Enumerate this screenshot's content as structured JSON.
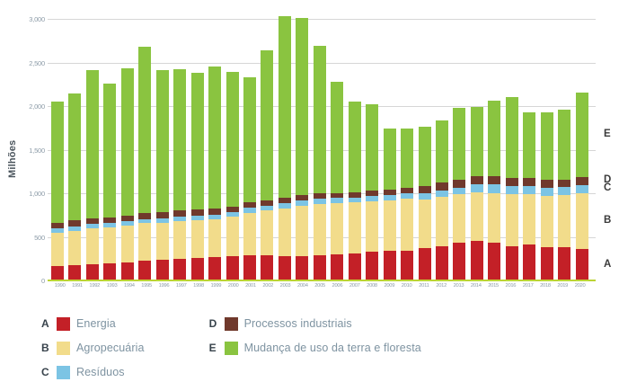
{
  "chart_data": {
    "type": "bar",
    "stacked": true,
    "title": "",
    "ylabel": "Milhões",
    "xlabel": "",
    "ylim": [
      0,
      3000
    ],
    "grid": true,
    "legend_position": "bottom-left",
    "yticks": [
      {
        "label": "3,000",
        "value": 3000
      },
      {
        "label": "2,500",
        "value": 2500
      },
      {
        "label": "2,000",
        "value": 2000
      },
      {
        "label": "1,500",
        "value": 1500
      },
      {
        "label": "1,000",
        "value": 1000
      },
      {
        "label": "500",
        "value": 500
      },
      {
        "label": "0",
        "value": 0
      }
    ],
    "categories": [
      "1990",
      "1991",
      "1992",
      "1993",
      "1994",
      "1995",
      "1996",
      "1997",
      "1998",
      "1999",
      "2000",
      "2001",
      "2002",
      "2003",
      "2004",
      "2005",
      "2006",
      "2007",
      "2008",
      "2009",
      "2010",
      "2011",
      "2012",
      "2013",
      "2014",
      "2015",
      "2016",
      "2017",
      "2018",
      "2019",
      "2020"
    ],
    "series": [
      {
        "key": "A",
        "name": "Energia",
        "color": "#c32027",
        "values": [
          170,
          180,
          190,
          195,
          205,
          225,
          235,
          250,
          260,
          265,
          280,
          285,
          285,
          280,
          280,
          285,
          300,
          310,
          325,
          340,
          340,
          370,
          395,
          430,
          455,
          430,
          395,
          415,
          385,
          385,
          360
        ]
      },
      {
        "key": "B",
        "name": "Agropecuária",
        "color": "#f2dc8b",
        "values": [
          380,
          390,
          405,
          415,
          425,
          430,
          430,
          430,
          430,
          440,
          450,
          490,
          515,
          550,
          580,
          590,
          590,
          585,
          580,
          575,
          595,
          560,
          565,
          560,
          560,
          575,
          595,
          575,
          585,
          595,
          640
        ]
      },
      {
        "key": "C",
        "name": "Resíduos",
        "color": "#7cc4e4",
        "values": [
          45,
          50,
          50,
          48,
          50,
          45,
          48,
          50,
          50,
          50,
          55,
          58,
          55,
          55,
          58,
          60,
          58,
          58,
          62,
          62,
          62,
          70,
          75,
          75,
          90,
          95,
          90,
          90,
          95,
          90,
          95
        ]
      },
      {
        "key": "D",
        "name": "Processos industriais",
        "color": "#70392c",
        "values": [
          70,
          70,
          65,
          62,
          60,
          70,
          70,
          72,
          75,
          72,
          62,
          62,
          65,
          65,
          62,
          62,
          57,
          62,
          62,
          60,
          63,
          80,
          85,
          85,
          90,
          95,
          95,
          95,
          90,
          90,
          90
        ]
      },
      {
        "key": "E",
        "name": "Mudança de uso da terra e floresta",
        "color": "#8ac440",
        "values": [
          1385,
          1450,
          1700,
          1535,
          1695,
          1915,
          1627,
          1618,
          1565,
          1628,
          1543,
          1435,
          1715,
          2085,
          2030,
          1693,
          1275,
          1035,
          991,
          703,
          685,
          685,
          715,
          830,
          800,
          870,
          925,
          750,
          770,
          800,
          970
        ]
      }
    ]
  },
  "legend": {
    "columns": [
      [
        "A",
        "B",
        "C"
      ],
      [
        "D",
        "E"
      ]
    ]
  },
  "colors": {
    "gridline": "#d6d6d6",
    "axis_baseline": "#bcd435",
    "tick_text": "#8d9ca8",
    "legend_label_text": "#7e93a1",
    "legend_letter_text": "#38434c",
    "ylabel_text": "#4a545c",
    "series_letter_text": "#3b3b3b",
    "background": "#ffffff"
  }
}
